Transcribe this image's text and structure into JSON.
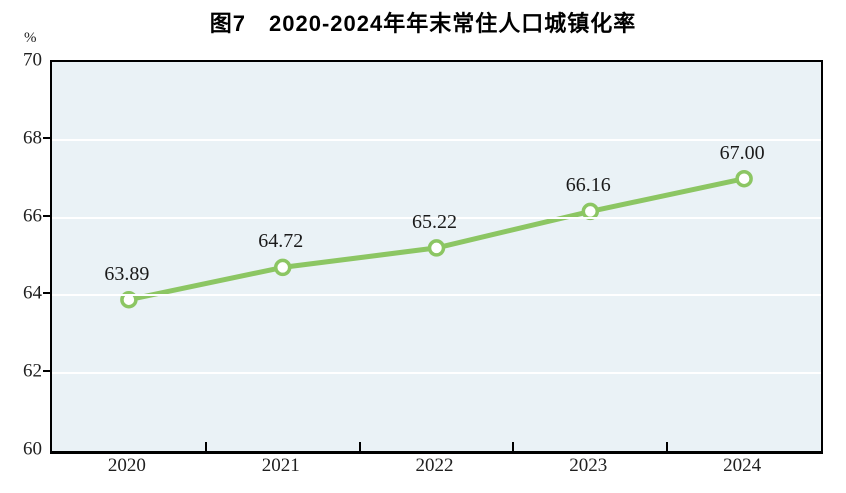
{
  "chart_data": {
    "type": "line",
    "title": "图7　2020-2024年年末常住人口城镇化率",
    "categories": [
      "2020",
      "2021",
      "2022",
      "2023",
      "2024"
    ],
    "series": [
      {
        "name": "年末常住人口城镇化率",
        "values": [
          63.89,
          64.72,
          65.22,
          66.16,
          67.0
        ],
        "point_labels": [
          "63.89",
          "64.72",
          "65.22",
          "66.16",
          "67.00"
        ]
      }
    ],
    "xlabel": "",
    "ylabel": "%",
    "ylim": [
      60,
      70
    ],
    "yticks": [
      60,
      62,
      64,
      66,
      68,
      70
    ],
    "grid": true,
    "legend": "none",
    "colors": {
      "line": "#8cc663",
      "marker_fill": "#ffffff",
      "marker_stroke": "#8cc663",
      "plot_background": "#eaf2f6",
      "grid_line": "#ffffff",
      "axis": "#000000",
      "text": "#1f1f1f"
    }
  }
}
